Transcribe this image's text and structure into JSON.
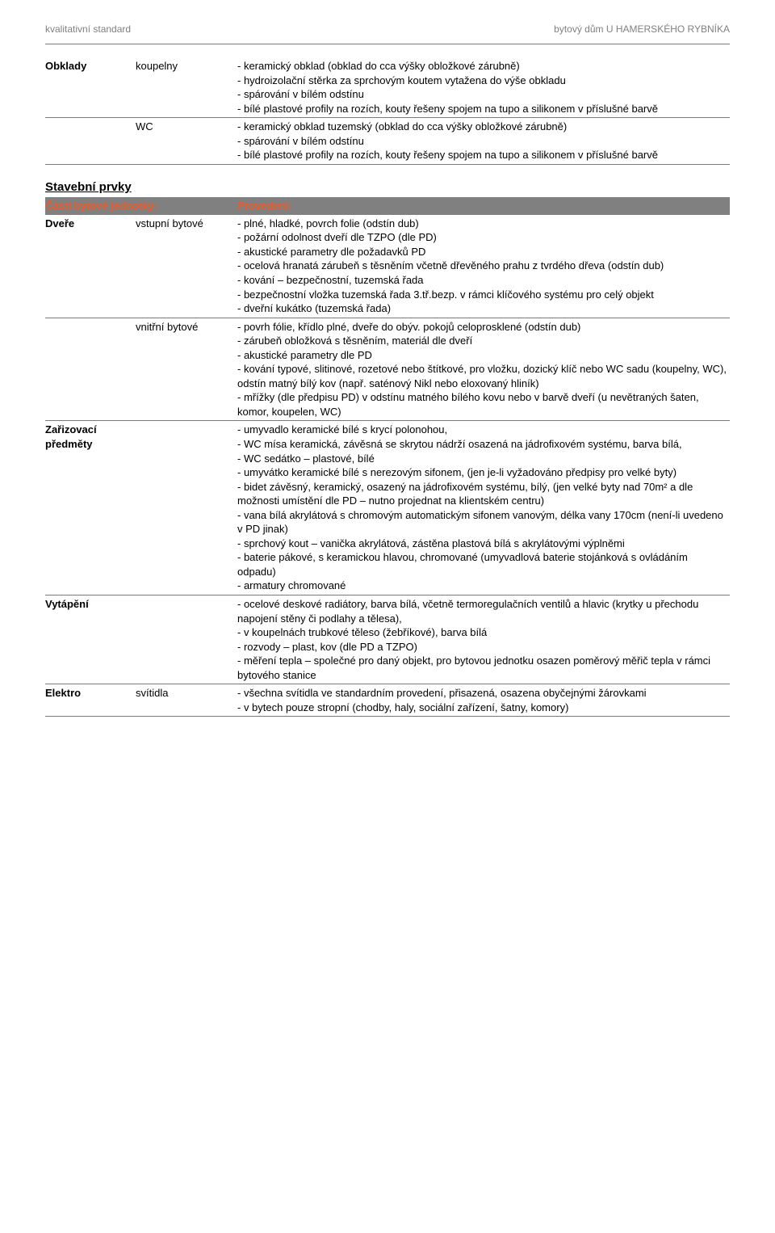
{
  "header": {
    "left": "kvalitativní standard",
    "right": "bytový dům U HAMERSKÉHO RYBNÍKA"
  },
  "table1": {
    "rows": [
      {
        "c1": "Obklady",
        "c2": "koupelny",
        "c3": "- keramický obklad (obklad do cca výšky obložkové zárubně)\n- hydroizolační stěrka za sprchovým koutem vytažena do výše obkladu\n- spárování v bílém odstínu\n- bílé plastové profily na rozích, kouty řešeny spojem na tupo a silikonem v příslušné barvě"
      },
      {
        "c1": "",
        "c2": "WC",
        "c3": "- keramický obklad tuzemský (obklad do cca výšky obložkové zárubně)\n- spárování v bílém odstínu\n- bílé plastové profily na rozích, kouty řešeny spojem na tupo a silikonem v příslušné barvě"
      }
    ]
  },
  "section2_title": "Stavební prvky",
  "table2": {
    "head": {
      "c12": "Části bytové jednotky:",
      "c3": "Provedení:"
    },
    "rows": [
      {
        "c1": "Dveře",
        "c2": "vstupní bytové",
        "c3": "- plné, hladké, povrch folie (odstín dub)\n- požární odolnost dveří dle TZPO (dle PD)\n- akustické parametry dle požadavků PD\n- ocelová hranatá zárubeň s těsněním včetně dřevěného prahu z tvrdého dřeva (odstín dub)\n- kování – bezpečnostní, tuzemská řada\n- bezpečnostní vložka tuzemská řada 3.tř.bezp. v rámci klíčového systému pro celý objekt\n- dveřní kukátko (tuzemská řada)"
      },
      {
        "c1": "",
        "c2": "vnitřní bytové",
        "c3": "- povrh fólie, křídlo plné, dveře do obýv. pokojů celoprosklené (odstín dub)\n- zárubeň obložková s těsněním, materiál dle dveří\n- akustické parametry dle PD\n- kování typové, slitinové, rozetové nebo štítkové, pro vložku, dozický klíč nebo WC sadu (koupelny, WC), odstín matný bílý kov (např. saténový Nikl nebo eloxovaný hliník)\n- mřížky (dle předpisu PD) v odstínu matného bílého kovu nebo v barvě dveří (u nevětraných šaten, komor, koupelen, WC)"
      },
      {
        "c1": "Zařizovací předměty",
        "c2": "",
        "c3": "- umyvadlo keramické bílé s krycí polonohou,\n- WC mísa keramická, závěsná se skrytou nádrží osazená na jádrofixovém systému, barva bílá,\n- WC sedátko – plastové, bílé\n- umyvátko keramické bílé s nerezovým sifonem,  (jen je-li vyžadováno předpisy pro velké byty)\n- bidet závěsný, keramický, osazený na jádrofixovém systému, bílý,  (jen velké byty nad 70m² a dle možnosti umístění dle PD – nutno projednat na klientském centru)\n- vana bílá akrylátová s chromovým automatickým sifonem vanovým, délka vany 170cm (není-li uvedeno v PD jinak)\n- sprchový kout – vanička akrylátová, zástěna plastová bílá s akrylátovými výplněmi\n- baterie pákové, s keramickou hlavou, chromované (umyvadlová baterie stojánková s ovládáním odpadu)\n- armatury chromované"
      },
      {
        "c1": "Vytápění",
        "c2": "",
        "c3": "- ocelové deskové radiátory, barva bílá, včetně termoregulačních ventilů a hlavic (krytky u přechodu napojení stěny či podlahy a tělesa),\n-  v koupelnách trubkové těleso (žebříkové), barva bílá\n- rozvody – plast, kov (dle PD a TZPO)\n- měření tepla – společné pro daný objekt, pro bytovou jednotku osazen poměrový měřič tepla v rámci bytového stanice"
      },
      {
        "c1": "Elektro",
        "c2": "svítidla",
        "c3": "- všechna svítidla ve standardním provedení, přisazená, osazena obyčejnými žárovkami\n- v bytech pouze stropní (chodby, haly, sociální zařízení, šatny, komory)"
      }
    ]
  }
}
